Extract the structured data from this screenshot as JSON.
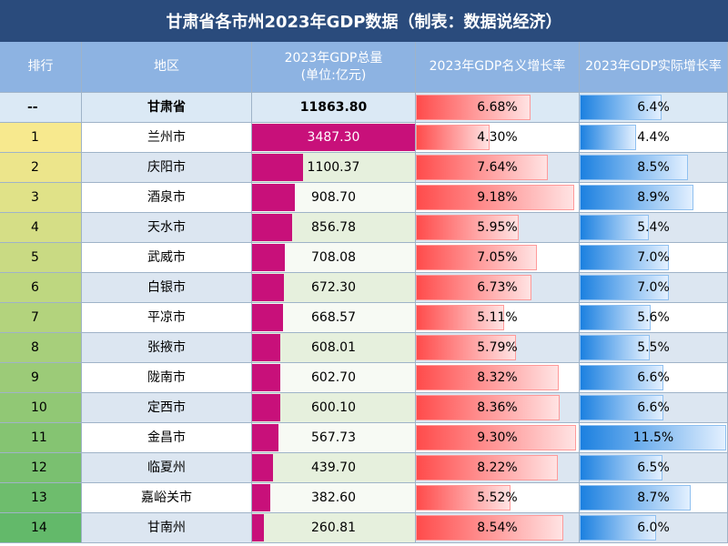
{
  "title": "甘肃省各市州2023年GDP数据（制表：数据说经济）",
  "table": {
    "header": [
      "排行",
      "地区",
      "2023年GDP总量\n(单位:亿元)",
      "2023年GDP名义增长率",
      "2023年GDP实际增长率"
    ],
    "rows": [
      [
        "--",
        "甘肃省",
        "11863.80",
        "6.68%",
        "6.4%"
      ],
      [
        "1",
        "兰州市",
        "3487.30",
        "4.30%",
        "4.4%"
      ],
      [
        "2",
        "庆阳市",
        "1100.37",
        "7.64%",
        "8.5%"
      ],
      [
        "3",
        "酒泉市",
        "908.70",
        "9.18%",
        "8.9%"
      ],
      [
        "4",
        "天水市",
        "856.78",
        "5.95%",
        "5.4%"
      ],
      [
        "5",
        "武威市",
        "708.08",
        "7.05%",
        "7.0%"
      ],
      [
        "6",
        "白银市",
        "672.30",
        "6.73%",
        "7.0%"
      ],
      [
        "7",
        "平凉市",
        "668.57",
        "5.11%",
        "5.6%"
      ],
      [
        "8",
        "张掖市",
        "608.01",
        "5.79%",
        "5.5%"
      ],
      [
        "9",
        "陇南市",
        "602.70",
        "8.32%",
        "6.6%"
      ],
      [
        "10",
        "定西市",
        "600.10",
        "8.36%",
        "6.6%"
      ],
      [
        "11",
        "金昌市",
        "567.73",
        "9.30%",
        "11.5%"
      ],
      [
        "12",
        "临夏州",
        "439.70",
        "8.22%",
        "6.5%"
      ],
      [
        "13",
        "嘉峪关市",
        "382.60",
        "5.52%",
        "8.7%"
      ],
      [
        "14",
        "甘南州",
        "260.81",
        "8.54%",
        "6.0%"
      ]
    ]
  }
}
